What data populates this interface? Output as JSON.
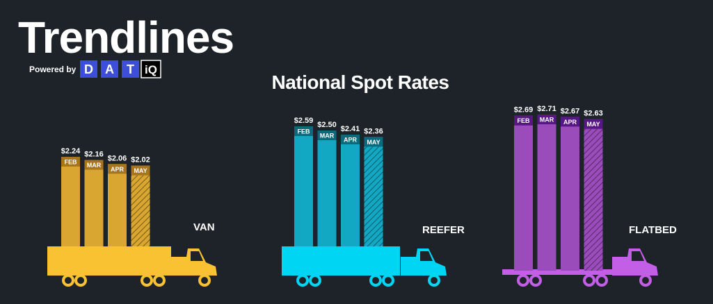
{
  "header": {
    "title": "Trendlines",
    "powered_by": "Powered by",
    "brand": [
      "D",
      "A",
      "T"
    ],
    "brand_suffix": "iQ"
  },
  "title": "National Spot Rates",
  "chart_data": [
    {
      "type": "bar",
      "title": "VAN",
      "categories": [
        "FEB",
        "MAR",
        "APR",
        "MAY"
      ],
      "values": [
        2.24,
        2.16,
        2.06,
        2.02
      ],
      "value_labels": [
        "$2.24",
        "$2.16",
        "$2.06",
        "$2.02"
      ],
      "color": "#d9a632"
    },
    {
      "type": "bar",
      "title": "REEFER",
      "categories": [
        "FEB",
        "MAR",
        "APR",
        "MAY"
      ],
      "values": [
        2.59,
        2.5,
        2.41,
        2.36
      ],
      "value_labels": [
        "$2.59",
        "$2.50",
        "$2.41",
        "$2.36"
      ],
      "color": "#12a8c3"
    },
    {
      "type": "bar",
      "title": "FLATBED",
      "categories": [
        "FEB",
        "MAR",
        "APR",
        "MAY"
      ],
      "values": [
        2.69,
        2.71,
        2.67,
        2.63
      ],
      "value_labels": [
        "$2.69",
        "$2.71",
        "$2.67",
        "$2.63"
      ],
      "color": "#9a4cbb"
    }
  ]
}
